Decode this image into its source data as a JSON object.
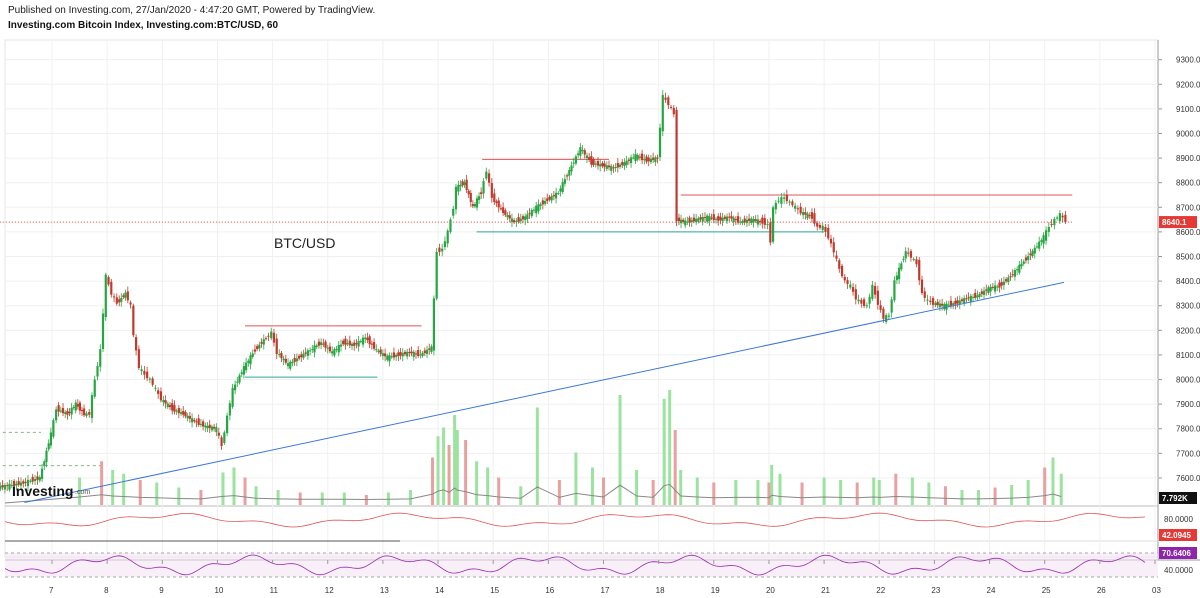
{
  "header": {
    "published": "Published on Investing.com, 27/Jan/2020 - 4:47:20 GMT, Powered by TradingView.",
    "symbol": "Investing.com Bitcoin Index, Investing.com:BTC/USD, 60"
  },
  "logo": {
    "text": "Investing",
    "suffix": ".com"
  },
  "colors": {
    "up": "#26a641",
    "down": "#c0392b",
    "resistance": "#e05555",
    "support": "#2aa89a",
    "trend": "#3b78d8",
    "rsi": "#9c27b0",
    "stoch": "#e05555",
    "volume_ma": "#888888",
    "price_tag": "#e53935",
    "rsi_tag": "#8e24aa"
  },
  "chart_data": {
    "type": "line",
    "title": "BTC/USD",
    "timeframe": "60",
    "y_price": {
      "ylim": [
        7490,
        9380
      ],
      "ticks": [
        9300,
        9200,
        9100,
        9000,
        8900,
        8800,
        8700,
        8600,
        8500,
        8400,
        8300,
        8200,
        8100,
        8000,
        7900,
        7800,
        7700,
        7600
      ],
      "tick_labels": [
        "9300.0",
        "9200.0",
        "9100.0",
        "9000.0",
        "8900.0",
        "8800.0",
        "8700.0",
        "8600.0",
        "8500.0",
        "8400.0",
        "8300.0",
        "8200.0",
        "8100.0",
        "8000.0",
        "7900.0",
        "7800.0",
        "7700.0",
        "7600.0"
      ]
    },
    "x_days": [
      "7",
      "8",
      "9",
      "10",
      "11",
      "12",
      "13",
      "14",
      "15",
      "16",
      "17",
      "18",
      "19",
      "20",
      "21",
      "22",
      "23",
      "24",
      "25",
      "26",
      "03"
    ],
    "close_path": [
      [
        6.0,
        7560
      ],
      [
        6.5,
        7580
      ],
      [
        6.8,
        7600
      ],
      [
        7.0,
        7780
      ],
      [
        7.1,
        7880
      ],
      [
        7.3,
        7860
      ],
      [
        7.45,
        7900
      ],
      [
        7.6,
        7860
      ],
      [
        7.7,
        7860
      ],
      [
        7.8,
        8000
      ],
      [
        7.9,
        8120
      ],
      [
        8.0,
        8420
      ],
      [
        8.1,
        8350
      ],
      [
        8.2,
        8310
      ],
      [
        8.35,
        8350
      ],
      [
        8.45,
        8300
      ],
      [
        8.5,
        8180
      ],
      [
        8.6,
        8050
      ],
      [
        8.7,
        8020
      ],
      [
        8.8,
        8000
      ],
      [
        8.9,
        7960
      ],
      [
        9.0,
        7920
      ],
      [
        9.2,
        7880
      ],
      [
        9.4,
        7860
      ],
      [
        9.6,
        7830
      ],
      [
        9.8,
        7810
      ],
      [
        10.0,
        7800
      ],
      [
        10.1,
        7730
      ],
      [
        10.2,
        7850
      ],
      [
        10.3,
        7960
      ],
      [
        10.5,
        8050
      ],
      [
        10.7,
        8120
      ],
      [
        10.9,
        8170
      ],
      [
        11.0,
        8190
      ],
      [
        11.1,
        8110
      ],
      [
        11.3,
        8060
      ],
      [
        11.5,
        8090
      ],
      [
        11.7,
        8120
      ],
      [
        11.9,
        8150
      ],
      [
        12.1,
        8110
      ],
      [
        12.3,
        8150
      ],
      [
        12.5,
        8140
      ],
      [
        12.7,
        8170
      ],
      [
        12.9,
        8120
      ],
      [
        13.1,
        8090
      ],
      [
        13.3,
        8100
      ],
      [
        13.5,
        8110
      ],
      [
        13.7,
        8100
      ],
      [
        13.9,
        8130
      ],
      [
        14.0,
        8520
      ],
      [
        14.1,
        8530
      ],
      [
        14.2,
        8600
      ],
      [
        14.3,
        8700
      ],
      [
        14.35,
        8780
      ],
      [
        14.5,
        8800
      ],
      [
        14.65,
        8700
      ],
      [
        14.8,
        8760
      ],
      [
        14.9,
        8850
      ],
      [
        15.0,
        8740
      ],
      [
        15.2,
        8680
      ],
      [
        15.4,
        8640
      ],
      [
        15.6,
        8660
      ],
      [
        15.8,
        8700
      ],
      [
        16.0,
        8730
      ],
      [
        16.2,
        8760
      ],
      [
        16.4,
        8850
      ],
      [
        16.6,
        8940
      ],
      [
        16.8,
        8880
      ],
      [
        17.0,
        8870
      ],
      [
        17.2,
        8860
      ],
      [
        17.4,
        8880
      ],
      [
        17.6,
        8910
      ],
      [
        17.8,
        8890
      ],
      [
        18.0,
        8900
      ],
      [
        18.1,
        9150
      ],
      [
        18.2,
        9120
      ],
      [
        18.3,
        9080
      ],
      [
        18.35,
        8650
      ],
      [
        18.5,
        8640
      ],
      [
        18.7,
        8650
      ],
      [
        18.9,
        8660
      ],
      [
        19.1,
        8650
      ],
      [
        19.3,
        8660
      ],
      [
        19.5,
        8640
      ],
      [
        19.7,
        8650
      ],
      [
        19.9,
        8640
      ],
      [
        20.0,
        8630
      ],
      [
        20.05,
        8560
      ],
      [
        20.1,
        8700
      ],
      [
        20.2,
        8730
      ],
      [
        20.3,
        8740
      ],
      [
        20.4,
        8720
      ],
      [
        20.5,
        8700
      ],
      [
        20.6,
        8680
      ],
      [
        20.8,
        8660
      ],
      [
        20.9,
        8620
      ],
      [
        21.0,
        8620
      ],
      [
        21.1,
        8580
      ],
      [
        21.2,
        8520
      ],
      [
        21.3,
        8450
      ],
      [
        21.4,
        8400
      ],
      [
        21.5,
        8380
      ],
      [
        21.6,
        8330
      ],
      [
        21.7,
        8310
      ],
      [
        21.8,
        8300
      ],
      [
        21.9,
        8380
      ],
      [
        22.0,
        8310
      ],
      [
        22.1,
        8250
      ],
      [
        22.2,
        8260
      ],
      [
        22.3,
        8400
      ],
      [
        22.5,
        8520
      ],
      [
        22.6,
        8500
      ],
      [
        22.7,
        8470
      ],
      [
        22.8,
        8350
      ],
      [
        22.9,
        8320
      ],
      [
        23.0,
        8310
      ],
      [
        23.2,
        8300
      ],
      [
        23.4,
        8310
      ],
      [
        23.6,
        8330
      ],
      [
        23.8,
        8340
      ],
      [
        24.0,
        8370
      ],
      [
        24.2,
        8380
      ],
      [
        24.4,
        8420
      ],
      [
        24.6,
        8470
      ],
      [
        24.8,
        8520
      ],
      [
        25.0,
        8580
      ],
      [
        25.1,
        8620
      ],
      [
        25.2,
        8650
      ],
      [
        25.3,
        8670
      ],
      [
        25.4,
        8645
      ]
    ],
    "last_price_label": "8640.1",
    "annotations": [
      "BTC/USD"
    ],
    "horizontal_levels": [
      {
        "kind": "resistance",
        "value": 8895,
        "x_from": 14.8,
        "x_to": 17.1
      },
      {
        "kind": "resistance",
        "value": 8750,
        "x_from": 18.4,
        "x_to": 25.5
      },
      {
        "kind": "resistance",
        "value": 8218,
        "x_from": 10.5,
        "x_to": 13.7
      },
      {
        "kind": "support",
        "value": 8600,
        "x_from": 14.7,
        "x_to": 21.0
      },
      {
        "kind": "support",
        "value": 8010,
        "x_from": 10.5,
        "x_to": 12.9
      },
      {
        "kind": "dashed",
        "value": 7785,
        "x_from": 6.0,
        "x_to": 6.8
      },
      {
        "kind": "dashed",
        "value": 7650,
        "x_from": 6.0,
        "x_to": 7.9
      },
      {
        "kind": "dotted-last",
        "value": 8640,
        "x_from": 6.0,
        "x_to": 25.5
      }
    ],
    "trend_line": {
      "from": [
        6.5,
        7500
      ],
      "to": [
        25.35,
        8395
      ]
    },
    "volume": {
      "label": "7.792K",
      "bars": [
        [
          7.5,
          0.22
        ],
        [
          7.9,
          0.35
        ],
        [
          8.1,
          0.28
        ],
        [
          8.3,
          0.25
        ],
        [
          8.6,
          0.2
        ],
        [
          8.9,
          0.18
        ],
        [
          9.3,
          0.14
        ],
        [
          9.7,
          0.12
        ],
        [
          10.1,
          0.26
        ],
        [
          10.3,
          0.3
        ],
        [
          10.5,
          0.22
        ],
        [
          10.7,
          0.15
        ],
        [
          11.1,
          0.12
        ],
        [
          11.5,
          0.1
        ],
        [
          11.9,
          0.1
        ],
        [
          12.3,
          0.1
        ],
        [
          12.7,
          0.08
        ],
        [
          13.1,
          0.1
        ],
        [
          13.5,
          0.12
        ],
        [
          13.9,
          0.38
        ],
        [
          14.0,
          0.55
        ],
        [
          14.1,
          0.62
        ],
        [
          14.2,
          0.48
        ],
        [
          14.3,
          0.72
        ],
        [
          14.35,
          0.6
        ],
        [
          14.5,
          0.52
        ],
        [
          14.7,
          0.35
        ],
        [
          14.9,
          0.3
        ],
        [
          15.1,
          0.22
        ],
        [
          15.5,
          0.15
        ],
        [
          15.8,
          0.78
        ],
        [
          16.2,
          0.2
        ],
        [
          16.5,
          0.42
        ],
        [
          16.8,
          0.3
        ],
        [
          17.0,
          0.22
        ],
        [
          17.3,
          0.88
        ],
        [
          17.6,
          0.28
        ],
        [
          17.9,
          0.2
        ],
        [
          18.1,
          0.85
        ],
        [
          18.2,
          0.92
        ],
        [
          18.3,
          0.6
        ],
        [
          18.4,
          0.28
        ],
        [
          18.7,
          0.22
        ],
        [
          19.0,
          0.18
        ],
        [
          19.4,
          0.2
        ],
        [
          19.8,
          0.2
        ],
        [
          20.0,
          0.18
        ],
        [
          20.05,
          0.32
        ],
        [
          20.2,
          0.25
        ],
        [
          20.6,
          0.18
        ],
        [
          21.0,
          0.22
        ],
        [
          21.3,
          0.2
        ],
        [
          21.6,
          0.18
        ],
        [
          21.9,
          0.22
        ],
        [
          22.0,
          0.2
        ],
        [
          22.3,
          0.25
        ],
        [
          22.6,
          0.22
        ],
        [
          22.9,
          0.18
        ],
        [
          23.2,
          0.15
        ],
        [
          23.5,
          0.12
        ],
        [
          23.8,
          0.12
        ],
        [
          24.1,
          0.14
        ],
        [
          24.4,
          0.16
        ],
        [
          24.7,
          0.2
        ],
        [
          25.0,
          0.3
        ],
        [
          25.15,
          0.38
        ],
        [
          25.3,
          0.25
        ]
      ]
    },
    "stochastic": {
      "label": "42.0945",
      "ticks": [
        "80.0000"
      ]
    },
    "rsi": {
      "label": "70.6406",
      "ticks": [
        "40.0000"
      ]
    }
  }
}
